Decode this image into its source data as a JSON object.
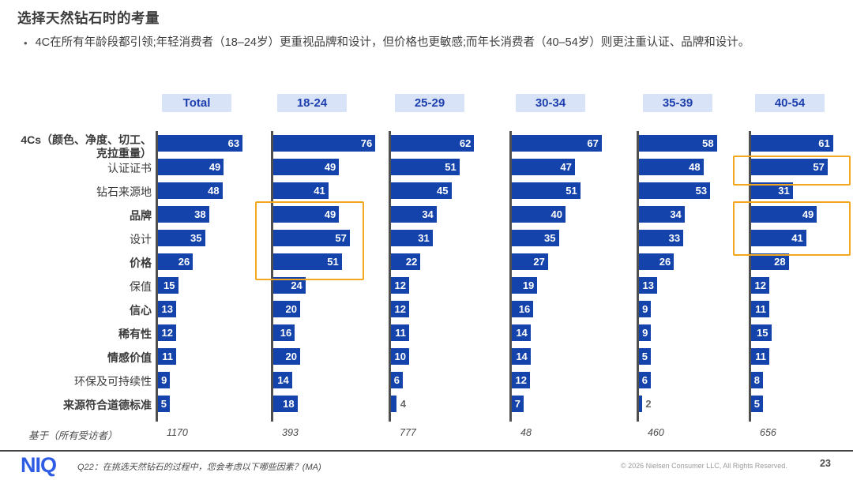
{
  "slide": {
    "title": "选择天然钻石时的考量",
    "bullet_dot": "•",
    "bullet": "4C在所有年龄段都引领;年轻消费者（18–24岁）更重视品牌和设计，但价格也更敏感;而年长消费者（40–54岁）则更注重认证、品牌和设计。",
    "footer": {
      "logo": "NIQ",
      "question": "Q22：在挑选天然钻石的过程中，您会考虑以下哪些因素？(MA)",
      "copyright": "© 2026 Nielsen Consumer LLC, All Rights Reserved.",
      "page_number": "23"
    }
  },
  "colors": {
    "bar": "#1443ab",
    "header_bg": "#d9e3f8",
    "header_text": "#1e3fae",
    "highlight": "#f2a71e",
    "axis": "#4f4f4f"
  },
  "chart_data": {
    "type": "bar",
    "orientation": "horizontal",
    "xlim": [
      0,
      80
    ],
    "columns": [
      "Total",
      "18-24",
      "25-29",
      "30-34",
      "35-39",
      "40-54"
    ],
    "categories": [
      "4Cs（颜色、净度、切工、\n克拉重量）",
      "认证证书",
      "钻石来源地",
      "品牌",
      "设计",
      "价格",
      "保值",
      "信心",
      "稀有性",
      "情感价值",
      "环保及可持续性",
      "来源符合道德标准"
    ],
    "category_bold": [
      true,
      false,
      false,
      true,
      false,
      true,
      false,
      true,
      true,
      true,
      false,
      true
    ],
    "series": [
      {
        "name": "Total",
        "base": "1170",
        "values": [
          63,
          49,
          48,
          38,
          35,
          26,
          15,
          13,
          12,
          11,
          9,
          5
        ]
      },
      {
        "name": "18-24",
        "base": "393",
        "values": [
          76,
          49,
          41,
          49,
          57,
          51,
          24,
          20,
          16,
          20,
          14,
          18
        ]
      },
      {
        "name": "25-29",
        "base": "777",
        "values": [
          62,
          51,
          45,
          34,
          31,
          22,
          12,
          12,
          11,
          10,
          6,
          4
        ]
      },
      {
        "name": "30-34",
        "base": "48",
        "values": [
          67,
          47,
          51,
          40,
          35,
          27,
          19,
          16,
          14,
          14,
          12,
          7
        ]
      },
      {
        "name": "35-39",
        "base": "460",
        "values": [
          58,
          48,
          53,
          34,
          33,
          26,
          13,
          9,
          9,
          5,
          6,
          2
        ]
      },
      {
        "name": "40-54",
        "base": "656",
        "values": [
          61,
          57,
          31,
          49,
          41,
          28,
          12,
          11,
          15,
          11,
          8,
          5
        ]
      }
    ],
    "base_label": "基于（所有受访者）",
    "highlights": [
      {
        "column": "18-24",
        "rows": [
          "品牌",
          "设计",
          "价格"
        ],
        "column_index": 1,
        "row_start": 3,
        "row_end": 5
      },
      {
        "column": "40-54",
        "rows": [
          "认证证书"
        ],
        "column_index": 5,
        "row_start": 1,
        "row_end": 1
      },
      {
        "column": "40-54",
        "rows": [
          "品牌",
          "设计"
        ],
        "column_index": 5,
        "row_start": 3,
        "row_end": 4
      }
    ]
  }
}
